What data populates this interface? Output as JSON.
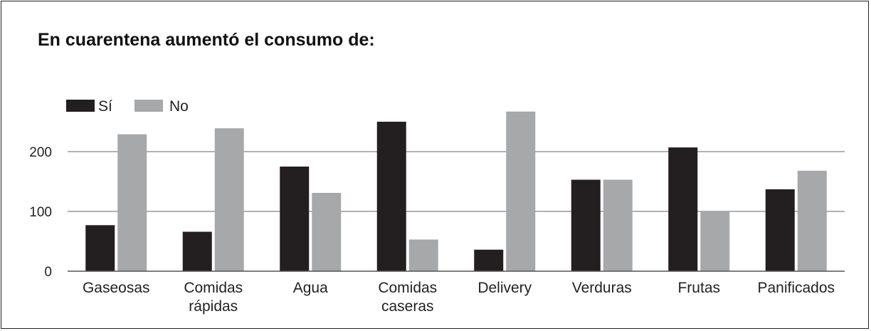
{
  "chart_data": {
    "type": "bar",
    "title": "En cuarentena aumentó el consumo de:",
    "categories": [
      [
        "Gaseosas"
      ],
      [
        "Comidas",
        "rápidas"
      ],
      [
        "Agua"
      ],
      [
        "Comidas",
        "caseras"
      ],
      [
        "Delivery"
      ],
      [
        "Verduras"
      ],
      [
        "Frutas"
      ],
      [
        "Panificados"
      ]
    ],
    "series": [
      {
        "name": "Sí",
        "color": "#231f20",
        "values": [
          77,
          66,
          175,
          250,
          36,
          153,
          207,
          137
        ]
      },
      {
        "name": "No",
        "color": "#a7a8aa",
        "values": [
          229,
          239,
          131,
          53,
          267,
          153,
          100,
          168
        ]
      }
    ],
    "ylim": [
      0,
      280
    ],
    "yticks": [
      0,
      100,
      200
    ],
    "grid": true,
    "legend": "top-left",
    "xlabel": "",
    "ylabel": ""
  }
}
